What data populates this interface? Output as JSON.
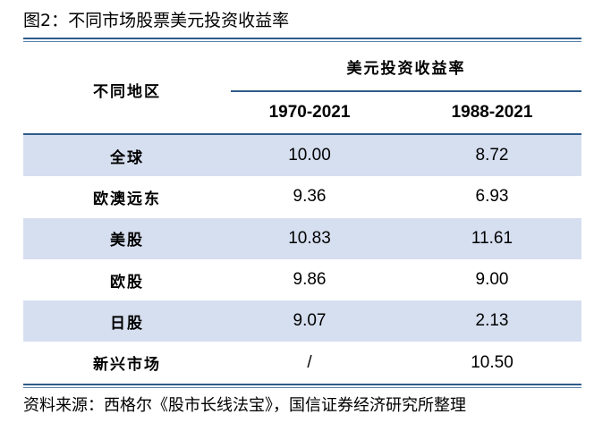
{
  "title": "图2：不同市场股票美元投资收益率",
  "table": {
    "region_header": "不同地区",
    "group_header": "美元投资收益率",
    "columns": [
      "1970-2021",
      "1988-2021"
    ],
    "rows": [
      {
        "region": "全球",
        "v1": "10.00",
        "v2": "8.72"
      },
      {
        "region": "欧澳远东",
        "v1": "9.36",
        "v2": "6.93"
      },
      {
        "region": "美股",
        "v1": "10.83",
        "v2": "11.61"
      },
      {
        "region": "欧股",
        "v1": "9.86",
        "v2": "9.00"
      },
      {
        "region": "日股",
        "v1": "9.07",
        "v2": "2.13"
      },
      {
        "region": "新兴市场",
        "v1": "/",
        "v2": "10.50"
      }
    ]
  },
  "source": "资料来源：西格尔《股市长线法宝》，国信证券经济研究所整理",
  "colors": {
    "rule": "#2e5c8a",
    "row_shade": "#d6dff0"
  }
}
